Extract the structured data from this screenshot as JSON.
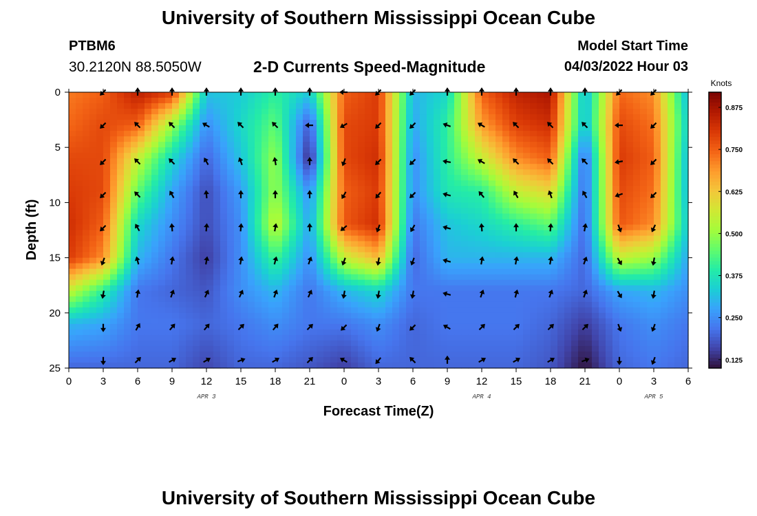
{
  "header": {
    "title": "University of Southern Mississippi Ocean Cube",
    "station_id": "PTBM6",
    "station_coords": "30.2120N  88.5050W",
    "plot_title": "2-D Currents Speed-Magnitude",
    "start_label": "Model Start Time",
    "start_value": "04/03/2022 Hour 03"
  },
  "footer": {
    "title": "University of Southern Mississippi Ocean Cube"
  },
  "chart_data": {
    "type": "heatmap",
    "title": "2-D Currents Speed-Magnitude",
    "xlabel": "Forecast Time(Z)",
    "ylabel": "Depth (ft)",
    "x_ticks": [
      "0",
      "3",
      "6",
      "9",
      "12",
      "15",
      "18",
      "21",
      "0",
      "3",
      "6",
      "9",
      "12",
      "15",
      "18",
      "21",
      "0",
      "3",
      "6"
    ],
    "x_range_hours": [
      0,
      54
    ],
    "date_labels": [
      {
        "text": "APR 3",
        "hour": 12
      },
      {
        "text": "APR 4",
        "hour": 36
      },
      {
        "text": "APR 5",
        "hour": 51
      }
    ],
    "y_ticks": [
      0,
      5,
      10,
      15,
      20,
      25
    ],
    "ylim": [
      0,
      25
    ],
    "colorbar": {
      "label": "Knots",
      "range": [
        0.1,
        0.92
      ],
      "ticks": [
        "0.875",
        "0.750",
        "0.625",
        "0.500",
        "0.375",
        "0.250",
        "0.125"
      ],
      "tick_values": [
        0.875,
        0.75,
        0.625,
        0.5,
        0.375,
        0.25,
        0.125
      ],
      "colors": [
        "#30123b",
        "#4145ab",
        "#4675ed",
        "#39a2fc",
        "#1bcfd4",
        "#24eca6",
        "#61fc6c",
        "#a4fc3b",
        "#d1e834",
        "#f3c63a",
        "#fe9b2d",
        "#f36315",
        "#d93806",
        "#b11901",
        "#7a0403"
      ]
    },
    "arrow_hours": [
      3,
      6,
      9,
      12,
      15,
      18,
      21,
      24,
      27,
      30,
      33,
      36,
      39,
      42,
      45,
      48,
      51
    ],
    "arrow_depths": [
      0,
      3,
      6.3,
      9.3,
      12.3,
      15.3,
      18.3,
      21.3,
      24.3
    ],
    "arrow_directions_deg": [
      [
        225,
        0,
        0,
        0,
        0,
        0,
        0,
        270,
        225,
        225,
        0,
        0,
        0,
        0,
        0,
        225,
        225
      ],
      [
        225,
        315,
        315,
        300,
        315,
        315,
        270,
        240,
        225,
        225,
        290,
        300,
        315,
        315,
        315,
        270,
        225
      ],
      [
        225,
        315,
        315,
        330,
        340,
        350,
        0,
        200,
        225,
        225,
        280,
        300,
        315,
        315,
        315,
        260,
        225
      ],
      [
        225,
        315,
        330,
        355,
        0,
        0,
        0,
        210,
        220,
        225,
        285,
        320,
        330,
        340,
        330,
        250,
        225
      ],
      [
        225,
        330,
        355,
        5,
        5,
        10,
        0,
        230,
        200,
        210,
        285,
        355,
        0,
        5,
        10,
        160,
        205
      ],
      [
        200,
        345,
        10,
        10,
        10,
        15,
        20,
        200,
        190,
        200,
        285,
        10,
        10,
        10,
        20,
        150,
        190
      ],
      [
        190,
        10,
        20,
        25,
        25,
        20,
        25,
        190,
        190,
        190,
        285,
        20,
        15,
        20,
        20,
        150,
        190
      ],
      [
        180,
        30,
        40,
        40,
        45,
        40,
        45,
        225,
        200,
        225,
        300,
        45,
        45,
        45,
        45,
        160,
        200
      ],
      [
        180,
        45,
        60,
        60,
        70,
        60,
        45,
        300,
        220,
        315,
        0,
        60,
        60,
        60,
        70,
        180,
        200
      ]
    ],
    "speed_field_knots": [
      [
        0.72,
        0.75,
        0.85,
        0.8,
        0.32,
        0.33,
        0.4,
        0.33,
        0.75,
        0.8,
        0.3,
        0.35,
        0.75,
        0.84,
        0.87,
        0.3,
        0.74,
        0.7,
        0.3
      ],
      [
        0.74,
        0.78,
        0.75,
        0.5,
        0.25,
        0.35,
        0.45,
        0.18,
        0.78,
        0.8,
        0.28,
        0.4,
        0.68,
        0.79,
        0.82,
        0.3,
        0.78,
        0.73,
        0.33
      ],
      [
        0.78,
        0.78,
        0.55,
        0.35,
        0.2,
        0.32,
        0.5,
        0.12,
        0.78,
        0.82,
        0.25,
        0.4,
        0.55,
        0.7,
        0.75,
        0.2,
        0.8,
        0.75,
        0.3
      ],
      [
        0.8,
        0.78,
        0.45,
        0.28,
        0.17,
        0.27,
        0.5,
        0.25,
        0.75,
        0.8,
        0.25,
        0.38,
        0.4,
        0.55,
        0.6,
        0.2,
        0.78,
        0.73,
        0.3
      ],
      [
        0.82,
        0.75,
        0.35,
        0.25,
        0.17,
        0.25,
        0.55,
        0.28,
        0.76,
        0.82,
        0.22,
        0.32,
        0.35,
        0.4,
        0.45,
        0.2,
        0.76,
        0.7,
        0.32
      ],
      [
        0.8,
        0.7,
        0.3,
        0.22,
        0.15,
        0.25,
        0.42,
        0.25,
        0.55,
        0.65,
        0.2,
        0.3,
        0.3,
        0.3,
        0.3,
        0.2,
        0.55,
        0.5,
        0.28
      ],
      [
        0.55,
        0.4,
        0.22,
        0.2,
        0.18,
        0.25,
        0.3,
        0.22,
        0.3,
        0.35,
        0.22,
        0.22,
        0.22,
        0.22,
        0.22,
        0.2,
        0.28,
        0.3,
        0.25
      ],
      [
        0.3,
        0.28,
        0.22,
        0.22,
        0.2,
        0.22,
        0.25,
        0.22,
        0.22,
        0.25,
        0.2,
        0.22,
        0.22,
        0.22,
        0.2,
        0.15,
        0.22,
        0.25,
        0.22
      ],
      [
        0.2,
        0.2,
        0.2,
        0.2,
        0.16,
        0.2,
        0.2,
        0.18,
        0.15,
        0.2,
        0.2,
        0.2,
        0.2,
        0.2,
        0.18,
        0.1,
        0.2,
        0.22,
        0.2
      ]
    ],
    "speed_field_hours": [
      0,
      3,
      6,
      9,
      12,
      15,
      18,
      21,
      24,
      27,
      30,
      33,
      36,
      39,
      42,
      45,
      48,
      51,
      54
    ],
    "speed_field_depths": [
      0,
      3,
      6,
      9,
      12,
      15,
      18,
      21,
      25
    ]
  }
}
